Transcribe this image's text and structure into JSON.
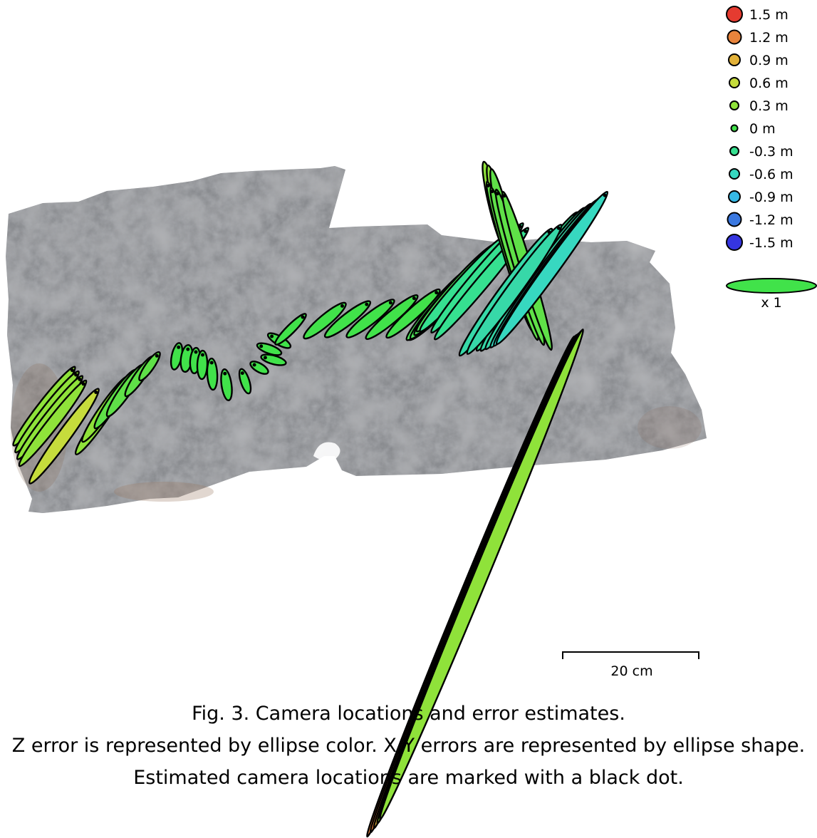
{
  "figure": {
    "caption_lines": [
      "Fig. 3. Camera locations and error estimates.",
      "Z error is represented by ellipse color. X,Y errors are represented by ellipse shape.",
      "Estimated camera locations are marked with a black dot."
    ]
  },
  "legend": {
    "z_error": [
      {
        "label": "1.5 m",
        "color": "#e53b30"
      },
      {
        "label": "1.2 m",
        "color": "#e8843c"
      },
      {
        "label": "0.9 m",
        "color": "#e3b239"
      },
      {
        "label": "0.6 m",
        "color": "#c6dc3c"
      },
      {
        "label": "0.3 m",
        "color": "#8fe23a"
      },
      {
        "label": "0 m",
        "color": "#41e24a"
      },
      {
        "label": "-0.3 m",
        "color": "#36e090"
      },
      {
        "label": "-0.6 m",
        "color": "#37d8c0"
      },
      {
        "label": "-0.9 m",
        "color": "#36b9e6"
      },
      {
        "label": "-1.2 m",
        "color": "#3a78e0"
      },
      {
        "label": "-1.5 m",
        "color": "#3535e0"
      }
    ],
    "shape_scale": {
      "label": "x 1",
      "color": "#41e24a"
    }
  },
  "scale_bar": {
    "label": "20 cm"
  }
}
